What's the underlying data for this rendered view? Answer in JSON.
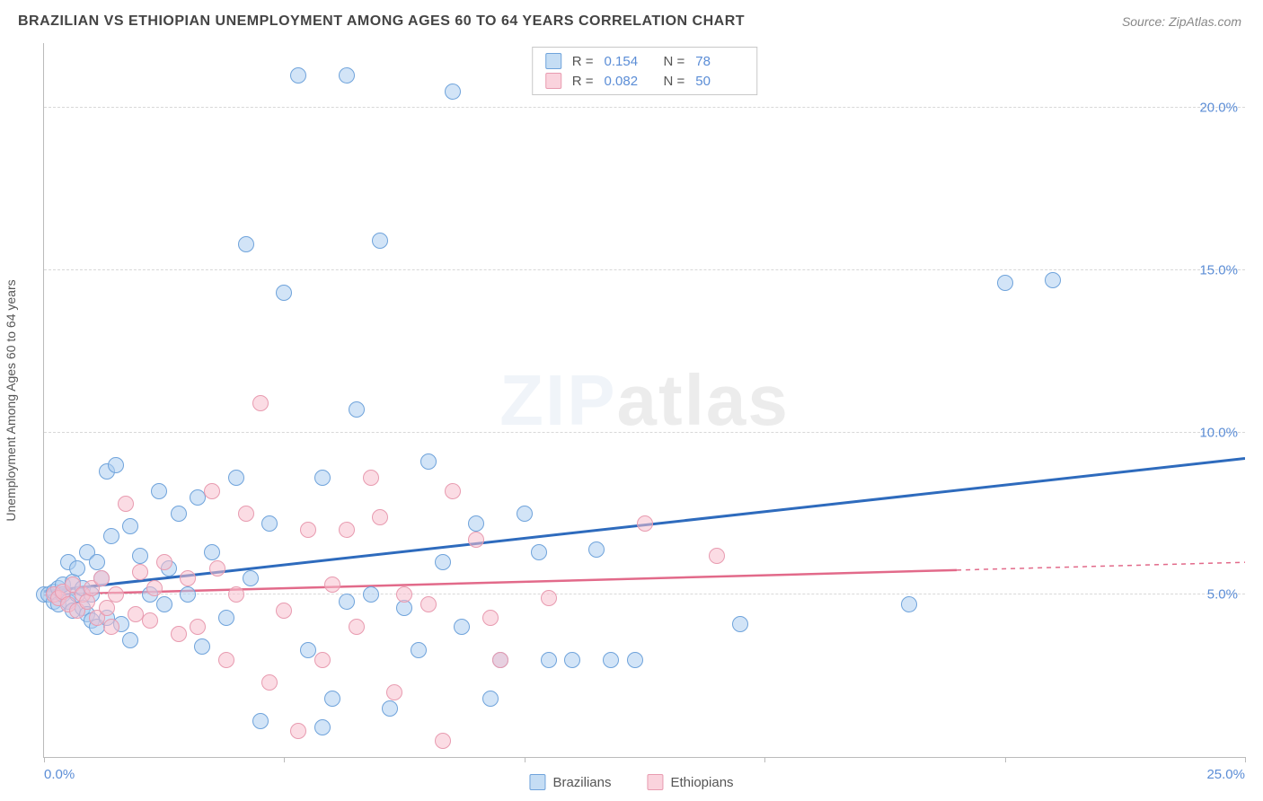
{
  "title": "BRAZILIAN VS ETHIOPIAN UNEMPLOYMENT AMONG AGES 60 TO 64 YEARS CORRELATION CHART",
  "source": "Source: ZipAtlas.com",
  "y_axis_label": "Unemployment Among Ages 60 to 64 years",
  "watermark": {
    "part1": "ZIP",
    "part2": "atlas"
  },
  "chart": {
    "type": "scatter",
    "xlim": [
      0,
      25
    ],
    "ylim": [
      0,
      22
    ],
    "x_ticks": [
      0,
      5,
      10,
      15,
      20,
      25
    ],
    "x_tick_labels": [
      "0.0%",
      "",
      "",
      "",
      "",
      "25.0%"
    ],
    "y_ticks": [
      5,
      10,
      15,
      20
    ],
    "y_tick_labels": [
      "5.0%",
      "10.0%",
      "15.0%",
      "20.0%"
    ],
    "grid_color": "#d8d8d8",
    "axis_color": "#bbbbbb",
    "background_color": "#ffffff",
    "tick_label_color": "#5b8dd6",
    "point_radius": 9,
    "series": [
      {
        "name": "Brazilians",
        "color_stroke": "#6fa3db",
        "color_fill": "rgba(173,206,240,0.55)",
        "trend_color": "#2e6bbd",
        "trend_width": 3,
        "trend": {
          "x0": 0,
          "y0": 5.1,
          "x1": 25,
          "y1": 9.2,
          "dash_from_x": null
        },
        "R": "0.154",
        "N": "78",
        "points": [
          [
            0.0,
            5.0
          ],
          [
            0.1,
            5.0
          ],
          [
            0.2,
            4.8
          ],
          [
            0.2,
            5.1
          ],
          [
            0.3,
            5.2
          ],
          [
            0.3,
            4.7
          ],
          [
            0.4,
            5.0
          ],
          [
            0.4,
            5.3
          ],
          [
            0.5,
            4.8
          ],
          [
            0.5,
            6.0
          ],
          [
            0.6,
            4.5
          ],
          [
            0.6,
            5.4
          ],
          [
            0.7,
            5.0
          ],
          [
            0.7,
            5.8
          ],
          [
            0.8,
            4.6
          ],
          [
            0.8,
            5.2
          ],
          [
            0.9,
            4.4
          ],
          [
            0.9,
            6.3
          ],
          [
            1.0,
            5.0
          ],
          [
            1.0,
            4.2
          ],
          [
            1.1,
            6.0
          ],
          [
            1.1,
            4.0
          ],
          [
            1.2,
            5.5
          ],
          [
            1.3,
            8.8
          ],
          [
            1.3,
            4.3
          ],
          [
            1.4,
            6.8
          ],
          [
            1.5,
            9.0
          ],
          [
            1.6,
            4.1
          ],
          [
            1.8,
            7.1
          ],
          [
            1.8,
            3.6
          ],
          [
            2.0,
            6.2
          ],
          [
            2.2,
            5.0
          ],
          [
            2.4,
            8.2
          ],
          [
            2.5,
            4.7
          ],
          [
            2.6,
            5.8
          ],
          [
            2.8,
            7.5
          ],
          [
            3.0,
            5.0
          ],
          [
            3.2,
            8.0
          ],
          [
            3.3,
            3.4
          ],
          [
            3.5,
            6.3
          ],
          [
            3.8,
            4.3
          ],
          [
            4.0,
            8.6
          ],
          [
            4.2,
            15.8
          ],
          [
            4.3,
            5.5
          ],
          [
            4.5,
            1.1
          ],
          [
            4.7,
            7.2
          ],
          [
            5.0,
            14.3
          ],
          [
            5.3,
            21.0
          ],
          [
            5.5,
            3.3
          ],
          [
            5.8,
            8.6
          ],
          [
            6.0,
            1.8
          ],
          [
            6.3,
            4.8
          ],
          [
            6.5,
            10.7
          ],
          [
            6.8,
            5.0
          ],
          [
            7.0,
            15.9
          ],
          [
            7.2,
            1.5
          ],
          [
            7.5,
            4.6
          ],
          [
            7.8,
            3.3
          ],
          [
            8.0,
            9.1
          ],
          [
            8.3,
            6.0
          ],
          [
            8.5,
            20.5
          ],
          [
            8.7,
            4.0
          ],
          [
            9.0,
            7.2
          ],
          [
            9.3,
            1.8
          ],
          [
            9.5,
            3.0
          ],
          [
            10.0,
            7.5
          ],
          [
            10.3,
            6.3
          ],
          [
            10.5,
            3.0
          ],
          [
            11.0,
            3.0
          ],
          [
            11.5,
            6.4
          ],
          [
            11.8,
            3.0
          ],
          [
            12.3,
            3.0
          ],
          [
            14.5,
            4.1
          ],
          [
            18.0,
            4.7
          ],
          [
            20.0,
            14.6
          ],
          [
            21.0,
            14.7
          ],
          [
            6.3,
            21.0
          ],
          [
            5.8,
            0.9
          ]
        ]
      },
      {
        "name": "Ethiopians",
        "color_stroke": "#e89bb0",
        "color_fill": "rgba(248,192,206,0.55)",
        "trend_color": "#e26a8a",
        "trend_width": 2.5,
        "trend": {
          "x0": 0,
          "y0": 5.0,
          "x1": 25,
          "y1": 6.0,
          "dash_from_x": 19
        },
        "R": "0.082",
        "N": "50",
        "points": [
          [
            0.2,
            5.0
          ],
          [
            0.3,
            4.9
          ],
          [
            0.4,
            5.1
          ],
          [
            0.5,
            4.7
          ],
          [
            0.6,
            5.3
          ],
          [
            0.7,
            4.5
          ],
          [
            0.8,
            5.0
          ],
          [
            0.9,
            4.8
          ],
          [
            1.0,
            5.2
          ],
          [
            1.1,
            4.3
          ],
          [
            1.2,
            5.5
          ],
          [
            1.3,
            4.6
          ],
          [
            1.4,
            4.0
          ],
          [
            1.5,
            5.0
          ],
          [
            1.7,
            7.8
          ],
          [
            1.9,
            4.4
          ],
          [
            2.0,
            5.7
          ],
          [
            2.2,
            4.2
          ],
          [
            2.5,
            6.0
          ],
          [
            2.8,
            3.8
          ],
          [
            3.0,
            5.5
          ],
          [
            3.2,
            4.0
          ],
          [
            3.5,
            8.2
          ],
          [
            3.8,
            3.0
          ],
          [
            4.0,
            5.0
          ],
          [
            4.2,
            7.5
          ],
          [
            4.5,
            10.9
          ],
          [
            4.7,
            2.3
          ],
          [
            5.0,
            4.5
          ],
          [
            5.3,
            0.8
          ],
          [
            5.5,
            7.0
          ],
          [
            5.8,
            3.0
          ],
          [
            6.0,
            5.3
          ],
          [
            6.3,
            7.0
          ],
          [
            6.5,
            4.0
          ],
          [
            6.8,
            8.6
          ],
          [
            7.0,
            7.4
          ],
          [
            7.3,
            2.0
          ],
          [
            7.5,
            5.0
          ],
          [
            8.0,
            4.7
          ],
          [
            8.3,
            0.5
          ],
          [
            8.5,
            8.2
          ],
          [
            9.0,
            6.7
          ],
          [
            9.3,
            4.3
          ],
          [
            9.5,
            3.0
          ],
          [
            10.5,
            4.9
          ],
          [
            12.5,
            7.2
          ],
          [
            14.0,
            6.2
          ],
          [
            2.3,
            5.2
          ],
          [
            3.6,
            5.8
          ]
        ]
      }
    ]
  },
  "legend_top": [
    {
      "swatch": "blue",
      "R": "0.154",
      "N": "78"
    },
    {
      "swatch": "pink",
      "R": "0.082",
      "N": "50"
    }
  ],
  "legend_bottom": [
    {
      "swatch": "blue",
      "label": "Brazilians"
    },
    {
      "swatch": "pink",
      "label": "Ethiopians"
    }
  ]
}
